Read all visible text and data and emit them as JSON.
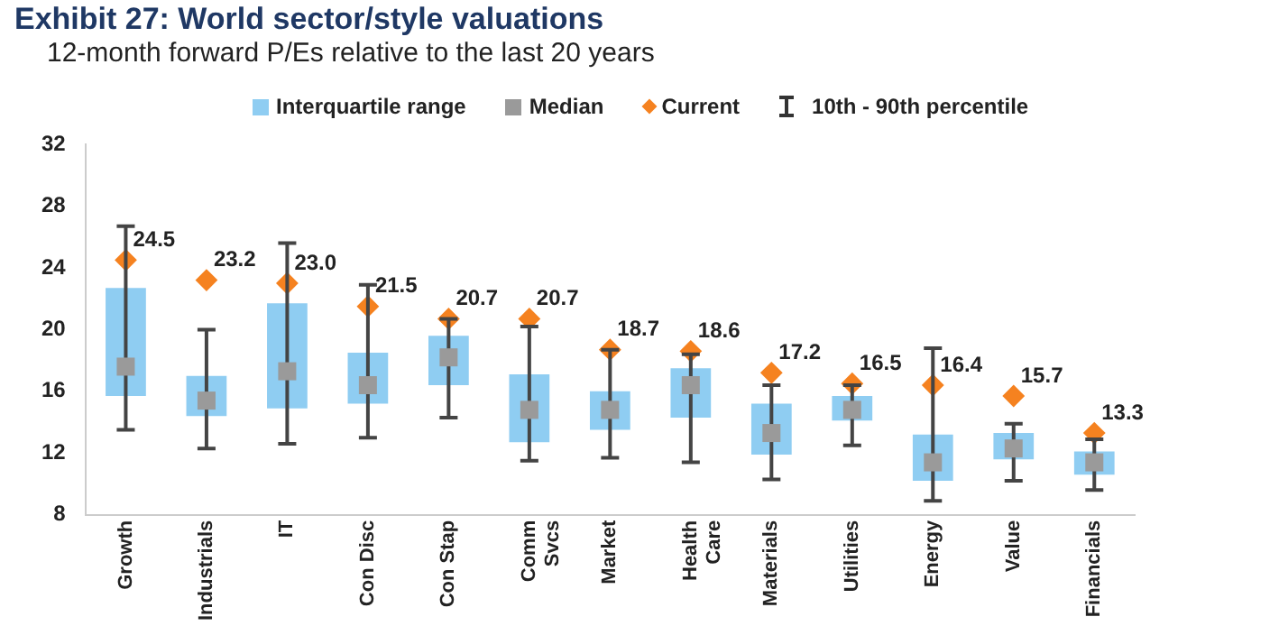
{
  "chart_data": {
    "type": "box",
    "title": "Exhibit 27: World sector/style valuations",
    "subtitle": "12-month forward P/Es relative to the last 20 years",
    "categories": [
      "Growth",
      "Industrials",
      "IT",
      "Con Disc",
      "Con Stap",
      "Comm Svcs",
      "Market",
      "Health Care",
      "Materials",
      "Utilities",
      "Energy",
      "Value",
      "Financials"
    ],
    "ylim": [
      8,
      32
    ],
    "yticks": [
      8,
      12,
      16,
      20,
      24,
      28,
      32
    ],
    "grid": false,
    "legend": "top",
    "annotations": [
      "Median",
      "10th - 90th percentile"
    ],
    "series": [
      {
        "name": "Interquartile range",
        "color": "#8fcdf2",
        "boxes": [
          {
            "low": 13.5,
            "q1": 15.7,
            "median": 17.6,
            "q3": 22.7,
            "high": 26.7
          },
          {
            "low": 12.3,
            "q1": 14.4,
            "median": 15.4,
            "q3": 17.0,
            "high": 20.0
          },
          {
            "low": 12.6,
            "q1": 14.9,
            "median": 17.3,
            "q3": 21.7,
            "high": 25.6
          },
          {
            "low": 13.0,
            "q1": 15.2,
            "median": 16.4,
            "q3": 18.5,
            "high": 22.9
          },
          {
            "low": 14.3,
            "q1": 16.4,
            "median": 18.2,
            "q3": 19.6,
            "high": 20.7
          },
          {
            "low": 11.5,
            "q1": 12.7,
            "median": 14.8,
            "q3": 17.1,
            "high": 20.2
          },
          {
            "low": 11.7,
            "q1": 13.5,
            "median": 14.8,
            "q3": 16.0,
            "high": 18.7
          },
          {
            "low": 11.4,
            "q1": 14.3,
            "median": 16.4,
            "q3": 17.5,
            "high": 18.4
          },
          {
            "low": 10.3,
            "q1": 11.9,
            "median": 13.3,
            "q3": 15.2,
            "high": 16.4
          },
          {
            "low": 12.5,
            "q1": 14.1,
            "median": 14.8,
            "q3": 15.7,
            "high": 16.4
          },
          {
            "low": 8.9,
            "q1": 10.2,
            "median": 11.4,
            "q3": 13.2,
            "high": 18.8
          },
          {
            "low": 10.2,
            "q1": 11.6,
            "median": 12.3,
            "q3": 13.3,
            "high": 13.9
          },
          {
            "low": 9.6,
            "q1": 10.6,
            "median": 11.4,
            "q3": 12.1,
            "high": 12.9
          }
        ]
      },
      {
        "type": "scatter",
        "name": "Current",
        "color": "#f58220",
        "marker": "diamond",
        "x": [
          "Growth",
          "Industrials",
          "IT",
          "Con Disc",
          "Con Stap",
          "Comm Svcs",
          "Market",
          "Health Care",
          "Materials",
          "Utilities",
          "Energy",
          "Value",
          "Financials"
        ],
        "values": [
          24.5,
          23.2,
          23.0,
          21.5,
          20.7,
          20.7,
          18.7,
          18.6,
          17.2,
          16.5,
          16.4,
          15.7,
          13.3
        ],
        "value_labels": [
          "24.5",
          "23.2",
          "23.0",
          "21.5",
          "20.7",
          "20.7",
          "18.7",
          "18.6",
          "17.2",
          "16.5",
          "16.4",
          "15.7",
          "13.3"
        ]
      }
    ]
  }
}
